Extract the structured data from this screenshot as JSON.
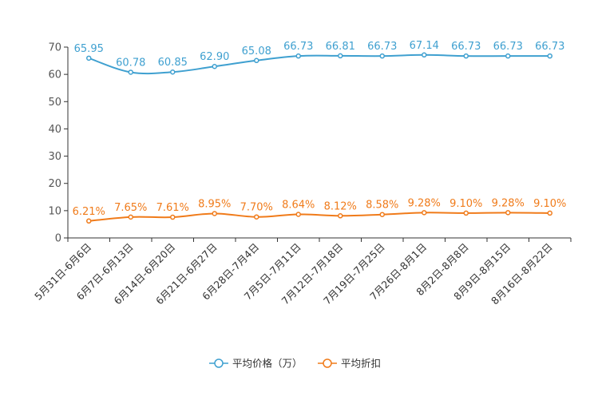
{
  "chart_data": {
    "type": "line",
    "title": "",
    "xlabel": "",
    "ylabel": "",
    "ylim": [
      0,
      70
    ],
    "yticks": [
      0,
      10,
      20,
      30,
      40,
      50,
      60,
      70
    ],
    "grid": false,
    "legend_position": "bottom-center",
    "categories": [
      "5月31日-6月6日",
      "6月7日-6月13日",
      "6月14日-6月20日",
      "6月21日-6月27日",
      "6月28日-7月4日",
      "7月5日-7月11日",
      "7月12日-7月18日",
      "7月19日-7月25日",
      "7月26日-8月1日",
      "8月2日-8月8日",
      "8月9日-8月15日",
      "8月16日-8月22日"
    ],
    "series": [
      {
        "name": "平均价格（万）",
        "color": "#3fa0d0",
        "values": [
          65.95,
          60.78,
          60.85,
          62.9,
          65.08,
          66.73,
          66.81,
          66.73,
          67.14,
          66.73,
          66.73,
          66.73
        ],
        "labels": [
          "65.95",
          "60.78",
          "60.85",
          "62.90",
          "65.08",
          "66.73",
          "66.81",
          "66.73",
          "67.14",
          "66.73",
          "66.73",
          "66.73"
        ]
      },
      {
        "name": "平均折扣",
        "color": "#f07b1a",
        "values": [
          6.21,
          7.65,
          7.61,
          8.95,
          7.7,
          8.64,
          8.12,
          8.58,
          9.28,
          9.1,
          9.28,
          9.1
        ],
        "labels": [
          "6.21%",
          "7.65%",
          "7.61%",
          "8.95%",
          "7.70%",
          "8.64%",
          "8.12%",
          "8.58%",
          "9.28%",
          "9.10%",
          "9.28%",
          "9.10%"
        ]
      }
    ]
  }
}
